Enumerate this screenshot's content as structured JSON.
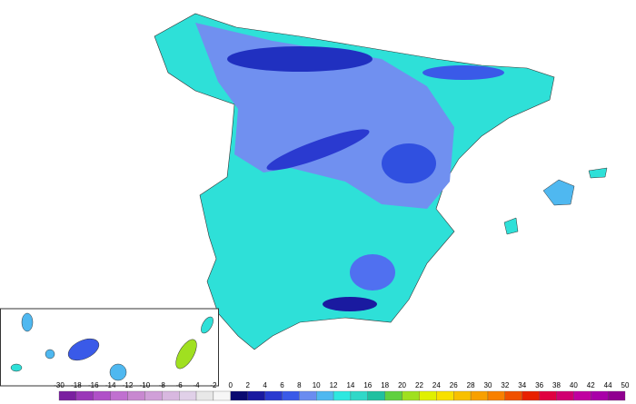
{
  "legend": {
    "labels": [
      -30,
      -18,
      -16,
      -14,
      -12,
      -10,
      -8,
      -6,
      -4,
      -2,
      0,
      2,
      4,
      6,
      8,
      10,
      12,
      14,
      16,
      18,
      20,
      22,
      24,
      26,
      28,
      30,
      32,
      34,
      36,
      38,
      40,
      42,
      44,
      50
    ],
    "colors": [
      "#7a1fa0",
      "#9a38b8",
      "#b050c8",
      "#c070d0",
      "#c888d0",
      "#d0a0d8",
      "#d8b8e0",
      "#e0d0e8",
      "#e8e8e8",
      "#f6f6f6",
      "#0a0a70",
      "#1a1aa0",
      "#2a3ad0",
      "#3a5ae8",
      "#6a8cf0",
      "#4fb8f0",
      "#2ee8e0",
      "#30d8c8",
      "#20c0a0",
      "#60d040",
      "#a0e020",
      "#e0f000",
      "#f8e000",
      "#f8c000",
      "#f8a000",
      "#f88000",
      "#f05000",
      "#e82000",
      "#e00040",
      "#d00070",
      "#c000a0",
      "#a800a8",
      "#900090"
    ]
  }
}
